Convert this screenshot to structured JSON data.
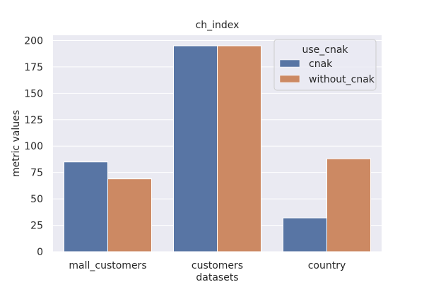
{
  "chart_data": {
    "type": "bar",
    "title": "ch_index",
    "xlabel": "datasets",
    "ylabel": "metric values",
    "categories": [
      "mall_customers",
      "customers",
      "country"
    ],
    "series": [
      {
        "name": "cnak",
        "values": [
          85,
          195,
          32
        ],
        "color": "#5875a4"
      },
      {
        "name": "without_cnak",
        "values": [
          69,
          195,
          88
        ],
        "color": "#cc8963"
      }
    ],
    "ylim": [
      0,
      205
    ],
    "yticks": [
      0,
      25,
      50,
      75,
      100,
      125,
      150,
      175,
      200
    ],
    "legend": {
      "title": "use_cnak",
      "placement": "top-right"
    },
    "grid": true,
    "background_color": "#eaeaf2",
    "grid_color": "#ffffff"
  }
}
